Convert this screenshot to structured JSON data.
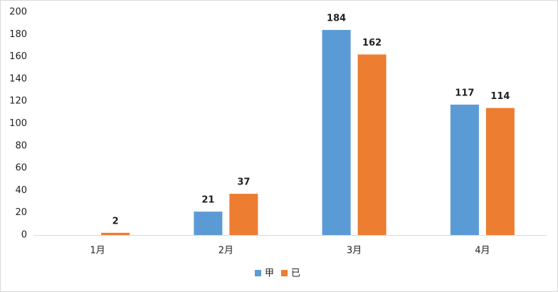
{
  "chart_data": {
    "type": "bar",
    "categories": [
      "1月",
      "2月",
      "3月",
      "4月"
    ],
    "series": [
      {
        "name": "甲",
        "color": "#5b9bd5",
        "values": [
          null,
          21,
          184,
          117
        ]
      },
      {
        "name": "已",
        "color": "#ed7d31",
        "values": [
          2,
          37,
          162,
          114
        ]
      }
    ],
    "ylim": [
      0,
      200
    ],
    "yticks": [
      0,
      20,
      40,
      60,
      80,
      100,
      120,
      140,
      160,
      180,
      200
    ],
    "grid": false,
    "legend": "bottom"
  }
}
